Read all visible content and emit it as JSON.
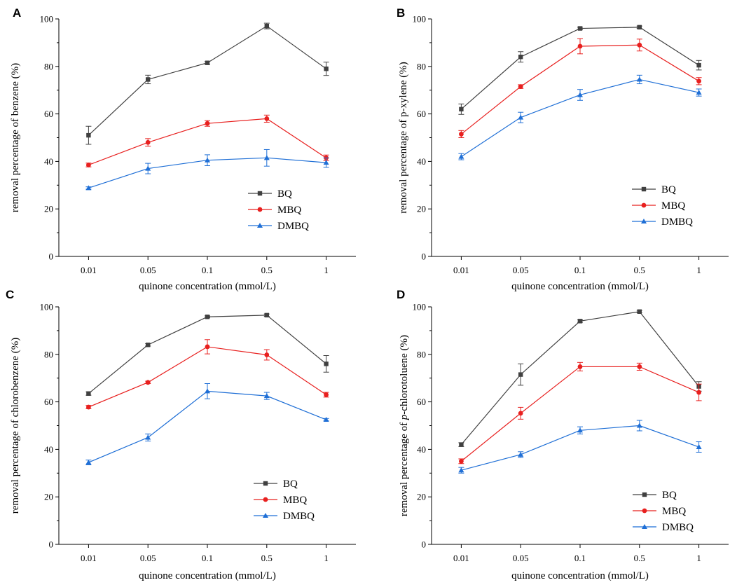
{
  "chart_data": [
    {
      "panel": "A",
      "type": "line",
      "categories": [
        "0.01",
        "0.05",
        "0.1",
        "0.5",
        "1"
      ],
      "xlabel": "quinone concentration (mmol/L)",
      "ylabel": "removal percentage of benzene (%)",
      "ylim": [
        0,
        100
      ],
      "yticks": [
        0,
        20,
        40,
        60,
        80,
        100
      ],
      "legend_position": "lower-right",
      "series": [
        {
          "name": "BQ",
          "color": "#404040",
          "marker": "square",
          "values": [
            51,
            74.5,
            81.5,
            97,
            79
          ],
          "errors": [
            3.8,
            1.8,
            0.6,
            1.2,
            2.8
          ]
        },
        {
          "name": "MBQ",
          "color": "#e8201f",
          "marker": "circle",
          "values": [
            38.5,
            48,
            56,
            58,
            41.5
          ],
          "errors": [
            0.8,
            1.6,
            1.2,
            1.5,
            1.2
          ]
        },
        {
          "name": "DMBQ",
          "color": "#1f6fd6",
          "marker": "triangle",
          "values": [
            28.8,
            37,
            40.5,
            41.5,
            39.5
          ],
          "errors": [
            0.5,
            2.2,
            2.3,
            3.5,
            2.0
          ]
        }
      ]
    },
    {
      "panel": "B",
      "type": "line",
      "categories": [
        "0.01",
        "0.05",
        "0.1",
        "0.5",
        "1"
      ],
      "xlabel": "quinone concentration (mmol/L)",
      "ylabel": "removal percentage of p-xylene (%)",
      "ylim": [
        0,
        100
      ],
      "yticks": [
        0,
        20,
        40,
        60,
        80,
        100
      ],
      "legend_position": "lower-right",
      "series": [
        {
          "name": "BQ",
          "color": "#404040",
          "marker": "square",
          "values": [
            62,
            84,
            96,
            96.5,
            80.5
          ],
          "errors": [
            2.2,
            2.2,
            0.5,
            0.5,
            2.0
          ]
        },
        {
          "name": "MBQ",
          "color": "#e8201f",
          "marker": "circle",
          "values": [
            51.5,
            71.5,
            88.5,
            89,
            73.8
          ],
          "errors": [
            1.5,
            0.8,
            3.2,
            2.5,
            1.5
          ]
        },
        {
          "name": "DMBQ",
          "color": "#1f6fd6",
          "marker": "triangle",
          "values": [
            42,
            58.5,
            68,
            74.5,
            69
          ],
          "errors": [
            1.3,
            2.2,
            2.3,
            1.8,
            1.5
          ]
        }
      ]
    },
    {
      "panel": "C",
      "type": "line",
      "categories": [
        "0.01",
        "0.05",
        "0.1",
        "0.5",
        "1"
      ],
      "xlabel": "quinone concentration (mmol/L)",
      "ylabel": "removal percentage of chlorobenzene (%)",
      "ylim": [
        0,
        100
      ],
      "yticks": [
        0,
        20,
        40,
        60,
        80,
        100
      ],
      "legend_position": "lower-right",
      "series": [
        {
          "name": "BQ",
          "color": "#404040",
          "marker": "square",
          "values": [
            63.5,
            84,
            95.8,
            96.5,
            76
          ],
          "errors": [
            0.7,
            0.5,
            0.4,
            0.5,
            3.5
          ]
        },
        {
          "name": "MBQ",
          "color": "#e8201f",
          "marker": "circle",
          "values": [
            57.8,
            68.2,
            83.2,
            79.8,
            63
          ],
          "errors": [
            0.7,
            0.5,
            3.0,
            2.2,
            1.0
          ]
        },
        {
          "name": "DMBQ",
          "color": "#1f6fd6",
          "marker": "triangle",
          "values": [
            34.5,
            45,
            64.5,
            62.5,
            52.5
          ],
          "errors": [
            1.0,
            1.5,
            3.2,
            1.5,
            0.5
          ]
        }
      ]
    },
    {
      "panel": "D",
      "type": "line",
      "categories": [
        "0.01",
        "0.05",
        "0.1",
        "0.5",
        "1"
      ],
      "xlabel": "quinone concentration (mmol/L)",
      "ylabel": "removal percentage of p-chlorotoluene (%)",
      "ylabel_italic": "p",
      "ylabel_prefix": "removal percentage of ",
      "ylabel_suffix": "-chlorotoluene (%)",
      "ylim": [
        0,
        100
      ],
      "yticks": [
        0,
        20,
        40,
        60,
        80,
        100
      ],
      "legend_position": "lower-right",
      "series": [
        {
          "name": "BQ",
          "color": "#404040",
          "marker": "square",
          "values": [
            42,
            71.5,
            94,
            98,
            66.5
          ],
          "errors": [
            0.8,
            4.5,
            0.5,
            0.5,
            2.0
          ]
        },
        {
          "name": "MBQ",
          "color": "#e8201f",
          "marker": "circle",
          "values": [
            35,
            55.2,
            74.8,
            74.8,
            64
          ],
          "errors": [
            1.0,
            2.5,
            1.8,
            1.5,
            3.5
          ]
        },
        {
          "name": "DMBQ",
          "color": "#1f6fd6",
          "marker": "triangle",
          "values": [
            31.2,
            37.8,
            48,
            50,
            41
          ],
          "errors": [
            1.2,
            1.2,
            1.5,
            2.2,
            2.2
          ]
        }
      ]
    }
  ]
}
